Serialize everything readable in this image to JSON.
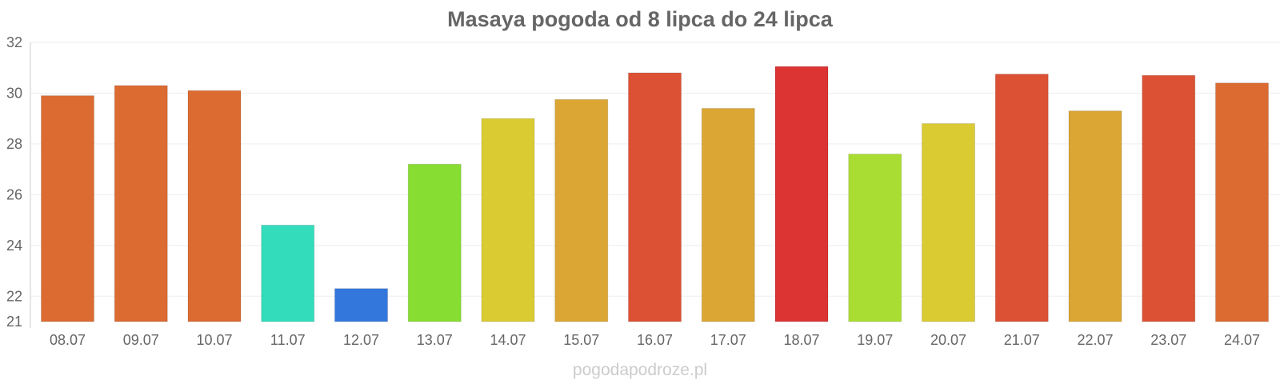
{
  "chart_data": {
    "type": "bar",
    "title": "Masaya pogoda od 8 lipca do 24 lipca",
    "xlabel": "",
    "ylabel": "",
    "categories": [
      "08.07",
      "09.07",
      "10.07",
      "11.07",
      "12.07",
      "13.07",
      "14.07",
      "15.07",
      "16.07",
      "17.07",
      "18.07",
      "19.07",
      "20.07",
      "21.07",
      "22.07",
      "23.07",
      "24.07"
    ],
    "values": [
      29.9,
      30.3,
      30.1,
      24.8,
      22.3,
      27.2,
      29.0,
      29.75,
      30.8,
      29.4,
      31.05,
      27.6,
      28.8,
      30.75,
      29.3,
      30.7,
      30.4
    ],
    "colors": [
      "#dc6b31",
      "#dc6b31",
      "#dc6b31",
      "#33ddbb",
      "#3377dd",
      "#88dd33",
      "#dbcb33",
      "#dba633",
      "#dc5033",
      "#dba633",
      "#dc3333",
      "#aadd33",
      "#dbcb33",
      "#dc5033",
      "#dba633",
      "#dc5033",
      "#dc6b31"
    ],
    "ylim": [
      21,
      32
    ],
    "yticks": [
      21,
      22,
      24,
      26,
      28,
      30,
      32
    ],
    "grid": true,
    "legend": "none"
  },
  "watermark": "pogodapodroze.pl"
}
